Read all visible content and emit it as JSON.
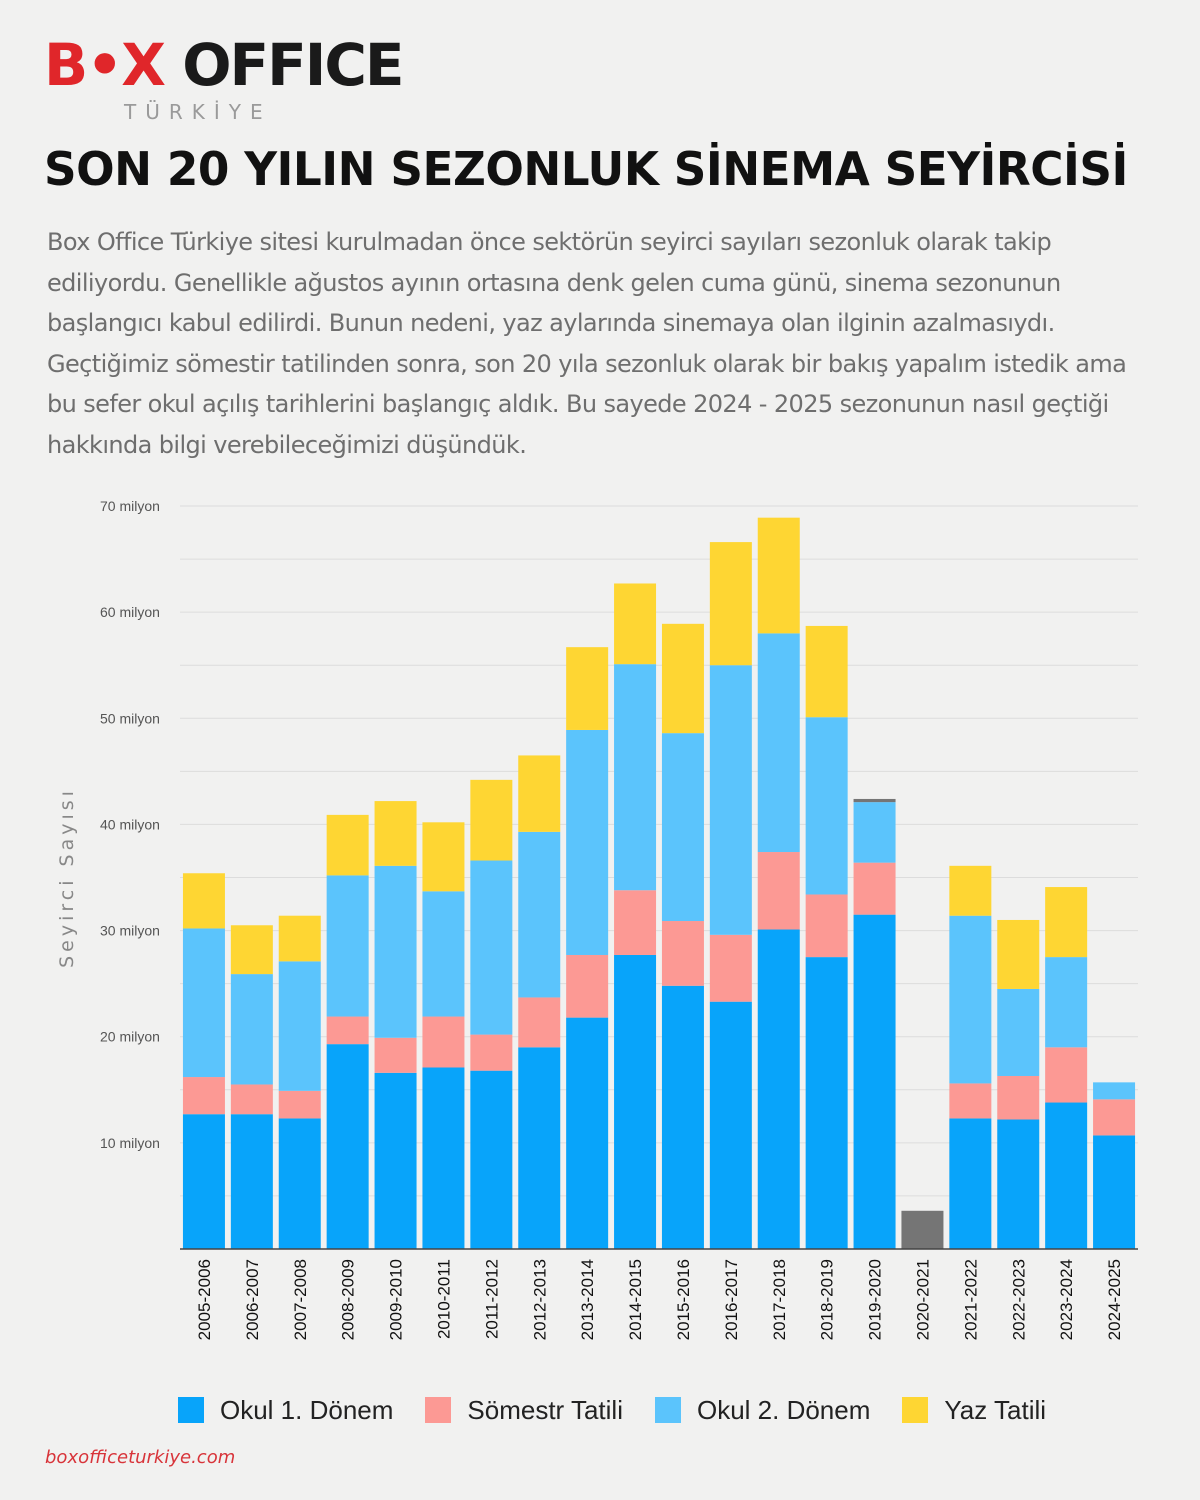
{
  "logo": {
    "main_pre": "B",
    "main_dot": "•",
    "main_x": "X",
    "main_rest": " OFFICE",
    "sub": "TÜRKİYE"
  },
  "title": "SON 20 YILIN SEZONLUK SİNEMA SEYİRCİSİ",
  "subtitle": "Box Office Türkiye sitesi kurulmadan önce sektörün seyirci sayıları sezonluk olarak takip ediliyordu. Genellikle ağustos ayının ortasına denk gelen cuma günü, sinema sezonunun başlangıcı kabul edilirdi. Bunun nedeni, yaz aylarında sinemaya olan ilginin azalmasıydı. Geçtiğimiz sömestir tatilinden sonra, son 20 yıla sezonluk olarak bir bakış yapalım istedik ama bu sefer okul açılış tarihlerini başlangıç aldık. Bu sayede 2024 - 2025 sezonunun nasıl geçtiği hakkında bilgi verebileceğimizi düşündük.",
  "footer": "boxofficeturkiye.com",
  "colors": {
    "okul1": "#08a4fa",
    "somestr": "#fc9994",
    "okul2": "#5bc4fc",
    "yaz": "#fed633",
    "total_only": "#757575"
  },
  "chart_data": {
    "type": "bar",
    "stacked": true,
    "ylabel": "Seyirci Sayısı",
    "ylim": [
      0,
      70
    ],
    "yticks": [
      10,
      20,
      30,
      40,
      50,
      60,
      70
    ],
    "ytick_labels": [
      "10 milyon",
      "20 milyon",
      "30 milyon",
      "40 milyon",
      "50 milyon",
      "60 milyon",
      "70 milyon"
    ],
    "grid": true,
    "legend_position": "bottom",
    "categories": [
      "2005-2006",
      "2006-2007",
      "2007-2008",
      "2008-2009",
      "2009-2010",
      "2010-2011",
      "2011-2012",
      "2012-2013",
      "2013-2014",
      "2014-2015",
      "2015-2016",
      "2016-2017",
      "2017-2018",
      "2018-2019",
      "2019-2020",
      "2020-2021",
      "2021-2022",
      "2022-2023",
      "2023-2024",
      "2024-2025"
    ],
    "series": [
      {
        "name": "Okul 1. Dönem",
        "values": [
          12.7,
          12.7,
          12.3,
          19.3,
          16.6,
          17.1,
          16.8,
          19.0,
          21.8,
          27.7,
          24.8,
          23.3,
          30.1,
          27.5,
          31.5,
          0,
          12.3,
          12.2,
          13.8,
          10.7
        ]
      },
      {
        "name": "Sömestr Tatili",
        "values": [
          3.5,
          2.8,
          2.6,
          2.6,
          3.3,
          4.8,
          3.4,
          4.7,
          5.9,
          6.1,
          6.1,
          6.3,
          7.3,
          5.9,
          4.9,
          0,
          3.3,
          4.1,
          5.2,
          3.4
        ]
      },
      {
        "name": "Okul 2. Dönem",
        "values": [
          14.0,
          10.4,
          12.2,
          13.3,
          16.2,
          11.8,
          16.4,
          15.6,
          21.2,
          21.3,
          17.7,
          25.4,
          20.6,
          16.7,
          5.7,
          0,
          15.8,
          8.2,
          8.5,
          1.6
        ]
      },
      {
        "name": "Yaz Tatili",
        "values": [
          5.2,
          4.6,
          4.3,
          5.7,
          6.1,
          6.5,
          7.6,
          7.2,
          7.8,
          7.6,
          10.3,
          11.6,
          10.9,
          8.6,
          0,
          0,
          4.7,
          6.5,
          6.6,
          0
        ]
      }
    ],
    "total_only": [
      0,
      0,
      0,
      0,
      0,
      0,
      0,
      0,
      0,
      0,
      0,
      0,
      0,
      0,
      0.3,
      3.6,
      0,
      0,
      0,
      0
    ]
  }
}
